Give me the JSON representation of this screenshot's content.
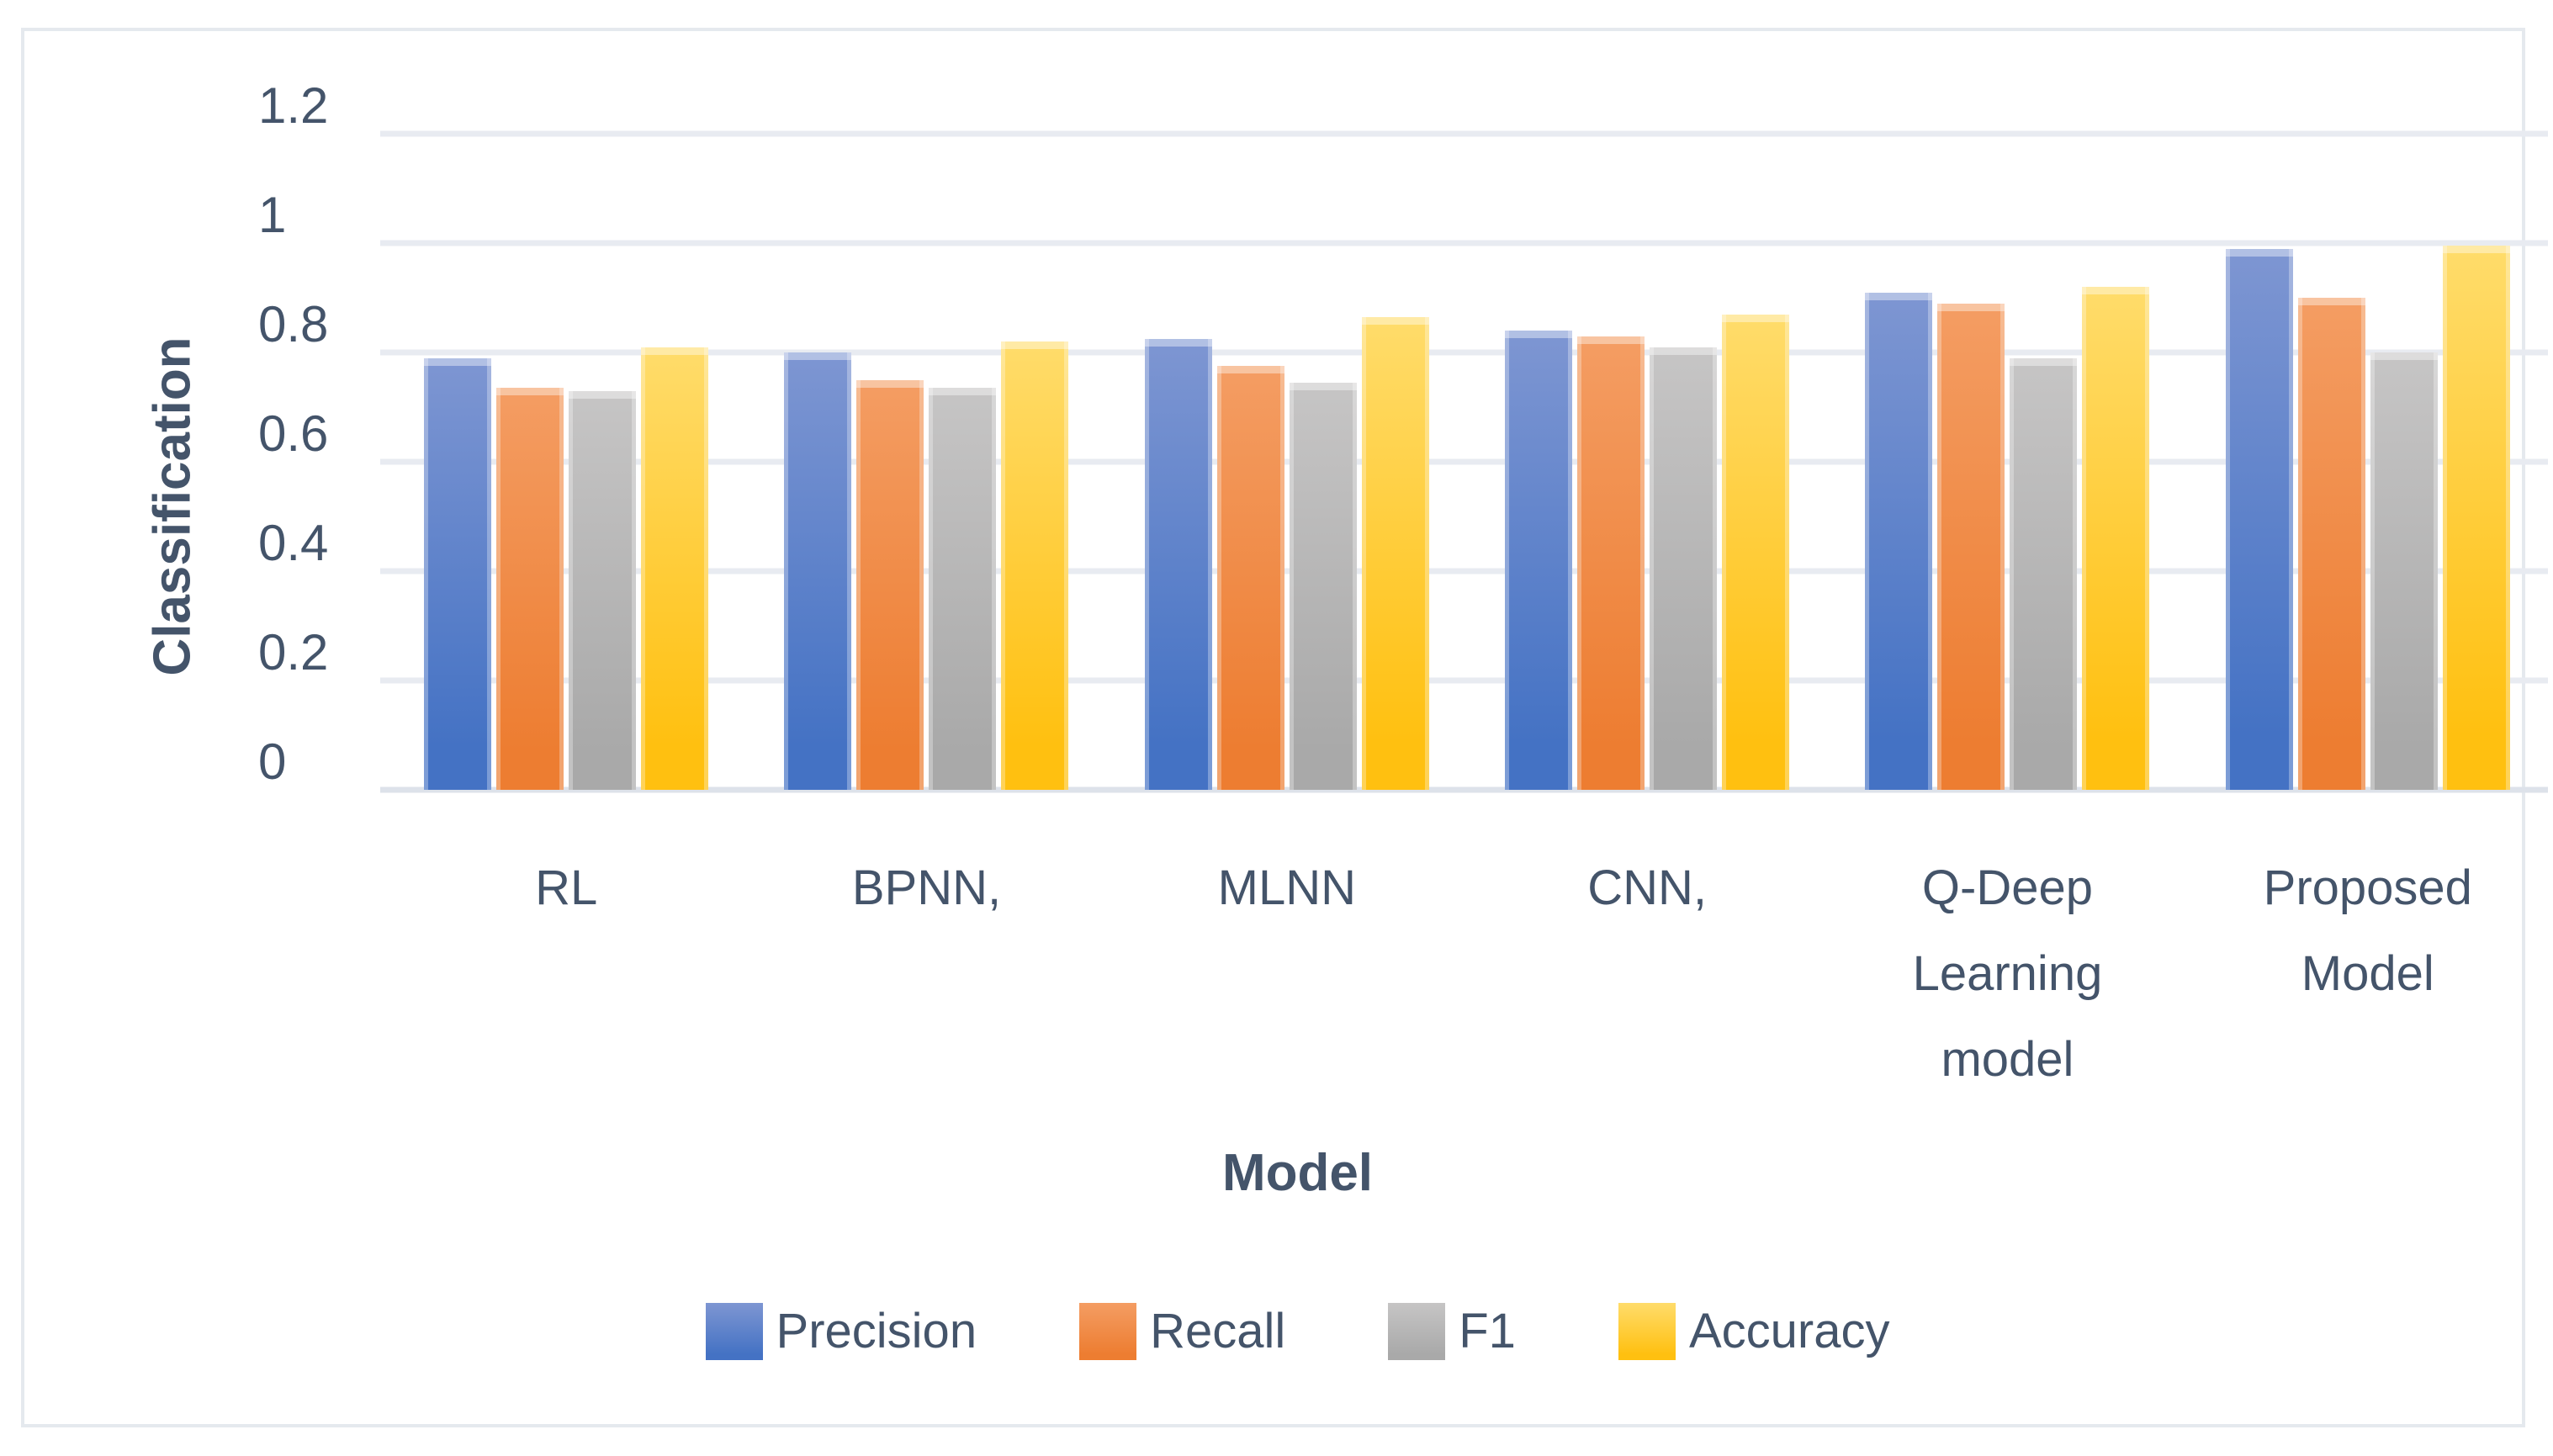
{
  "chart_data": {
    "type": "bar",
    "title": "",
    "xlabel": "Model",
    "ylabel": "Classification",
    "ylim": [
      0,
      1.2
    ],
    "ytick_step": 0.2,
    "yticks": [
      "0",
      "0.2",
      "0.4",
      "0.6",
      "0.8",
      "1",
      "1.2"
    ],
    "grid": true,
    "legend_position": "bottom",
    "categories": [
      "RL",
      "BPNN,",
      "MLNN",
      "CNN,",
      "Q-Deep Learning model",
      "Proposed Model"
    ],
    "series": [
      {
        "name": "Precision",
        "color": "#4472C4",
        "color_light": "#7E96D2",
        "values": [
          0.79,
          0.8,
          0.825,
          0.84,
          0.91,
          0.99
        ]
      },
      {
        "name": "Recall",
        "color": "#ED7D31",
        "color_light": "#F49D63",
        "values": [
          0.735,
          0.75,
          0.775,
          0.83,
          0.89,
          0.9
        ]
      },
      {
        "name": "F1",
        "color": "#A9A9A9",
        "color_light": "#C6C5C5",
        "values": [
          0.73,
          0.735,
          0.745,
          0.81,
          0.79,
          0.8
        ]
      },
      {
        "name": "Accuracy",
        "color": "#FFC010",
        "color_light": "#FFDC6B",
        "values": [
          0.81,
          0.82,
          0.865,
          0.87,
          0.92,
          0.995
        ]
      }
    ],
    "text_color": "#44546A",
    "gridline_color": "#E8EBF1",
    "frame_border_color": "#E5E9EE"
  }
}
